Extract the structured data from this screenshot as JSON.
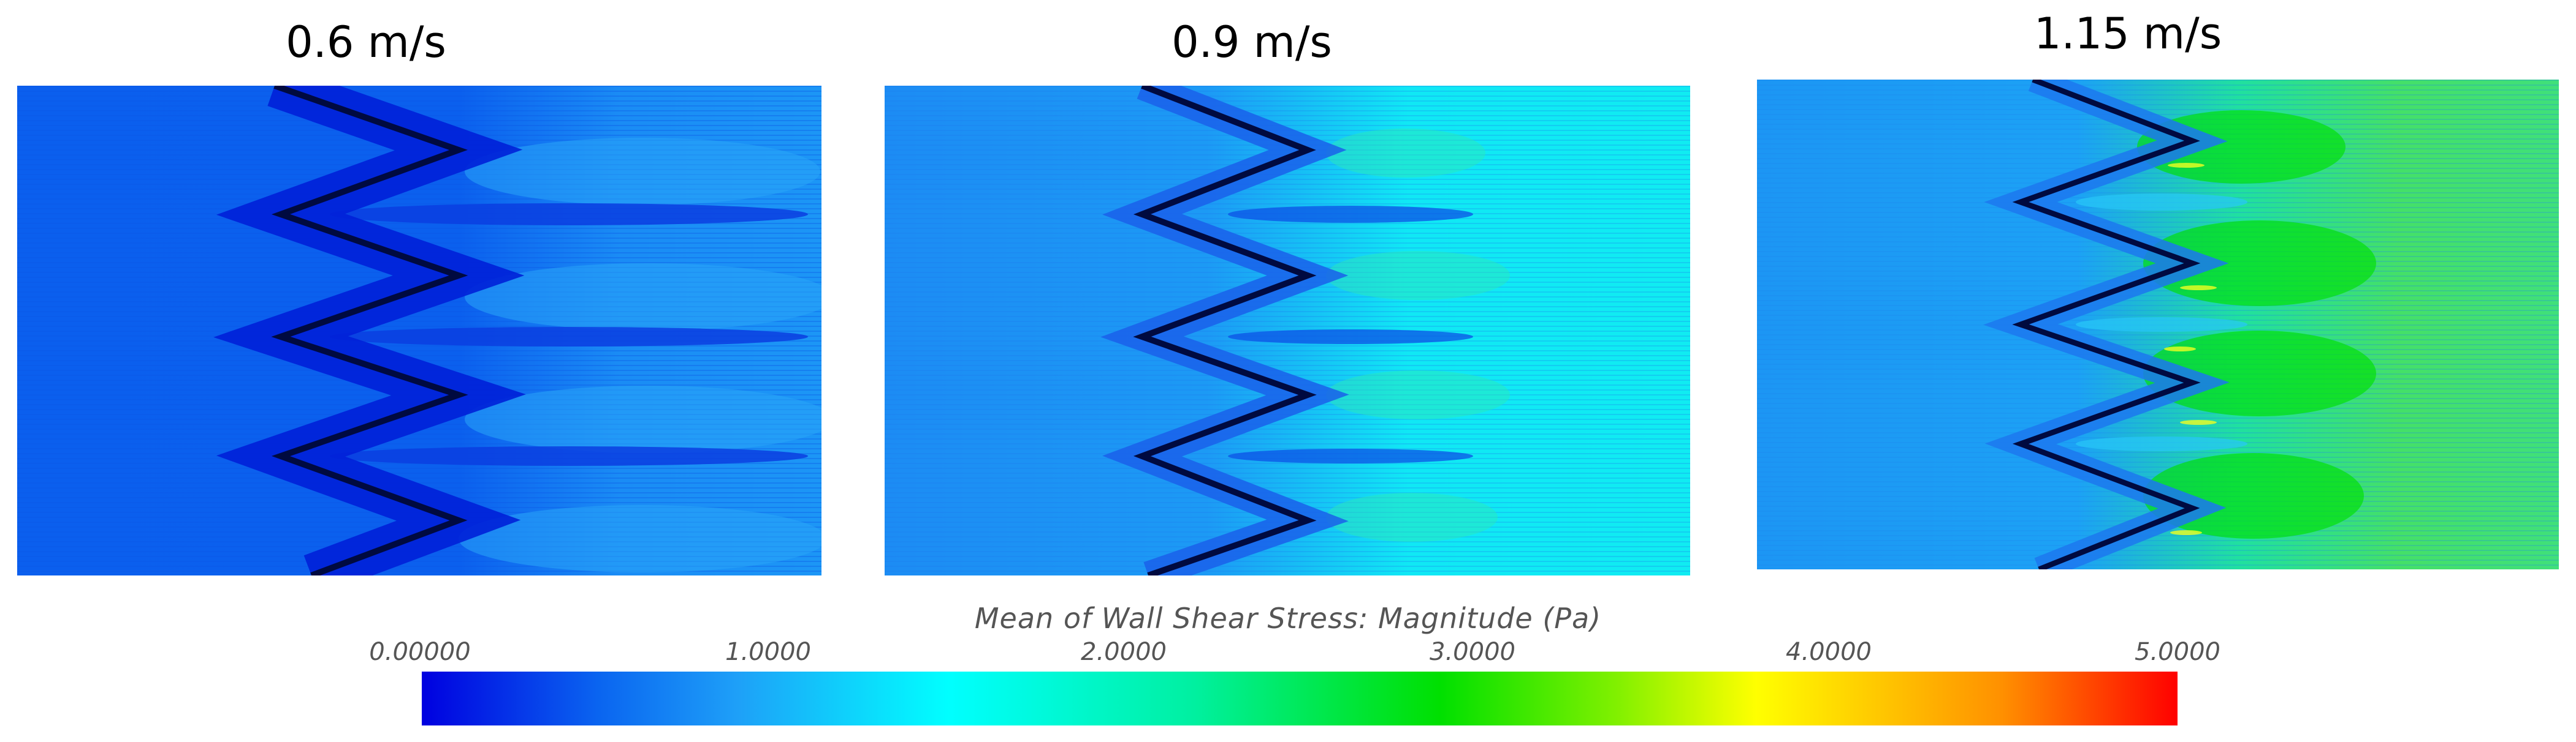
{
  "panels": [
    {
      "label": "0.6 m/s",
      "velocity": 0.6,
      "downstream_mean_pa": 1.2
    },
    {
      "label": "0.9 m/s",
      "velocity": 0.9,
      "downstream_mean_pa": 1.8
    },
    {
      "label": "1.15 m/s",
      "velocity": 1.15,
      "downstream_mean_pa": 2.6
    }
  ],
  "legend": {
    "title": "Mean of Wall Shear Stress: Magnitude (Pa)",
    "ticks": [
      "0.00000",
      "1.0000",
      "2.0000",
      "3.0000",
      "4.0000",
      "5.0000"
    ],
    "min": 0,
    "max": 5,
    "colors": {
      "dark_blue": "#0000e0",
      "blue": "#0a64f0",
      "light_blue": "#1ea0f8",
      "cyan": "#00ffff",
      "green": "#00e000",
      "yellow": "#ffff00",
      "orange": "#ff9000",
      "red": "#ff0000"
    }
  }
}
